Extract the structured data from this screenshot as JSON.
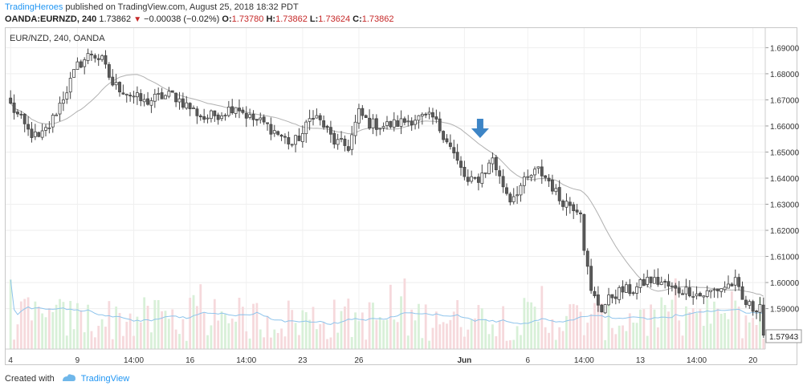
{
  "header": {
    "publisher": "TradingHeroes",
    "published_text": "published on TradingView.com, August 25, 2018 18:32 PDT"
  },
  "quote": {
    "symbol": "OANDA:EURNZD, 240",
    "last": "1.73862",
    "change": "−0.00038 (−0.02%)",
    "o_label": "O:",
    "o": "1.73780",
    "h_label": "H:",
    "h": "1.73862",
    "l_label": "L:",
    "l": "1.73624",
    "c_label": "C:",
    "c": "1.73862"
  },
  "legend": "EUR/NZD, 240, OANDA",
  "footer": {
    "created_with": "Created with",
    "brand": "TradingView"
  },
  "icons": {
    "down_arrow": "down-arrow-icon",
    "logo": "tradingview-logo-icon"
  },
  "colors": {
    "candle_up": "#ffffff",
    "candle_down": "#5b5b5b",
    "candle_border": "#444444",
    "ma": "#b0b0b0",
    "volume_ma": "#8ec4ec",
    "volume_up": "#d8f0d8",
    "volume_down": "#f6d9dc",
    "annotation": "#3d85c6",
    "price_label_bg": "#ffffff"
  },
  "chart_data": {
    "type": "candlestick",
    "ylim": [
      1.5745,
      1.6975
    ],
    "yticks": [
      "1.69000",
      "1.68000",
      "1.67000",
      "1.66000",
      "1.65000",
      "1.64000",
      "1.63000",
      "1.62000",
      "1.61000",
      "1.60000",
      "1.59000"
    ],
    "last_price_label": "1.57943",
    "last_price": 1.57943,
    "xticks": [
      {
        "label": "4",
        "i": 0
      },
      {
        "label": "9",
        "i": 19
      },
      {
        "label": "14:00",
        "i": 35
      },
      {
        "label": "16",
        "i": 51
      },
      {
        "label": "14:00",
        "i": 67
      },
      {
        "label": "23",
        "i": 83
      },
      {
        "label": "26",
        "i": 99
      },
      {
        "label": "Jun",
        "i": 129
      },
      {
        "label": "6",
        "i": 147
      },
      {
        "label": "14:00",
        "i": 163
      },
      {
        "label": "13",
        "i": 179
      },
      {
        "label": "14:00",
        "i": 195
      },
      {
        "label": "20",
        "i": 211
      }
    ],
    "anchors": [
      [
        0,
        1.668
      ],
      [
        5,
        1.658
      ],
      [
        8,
        1.655
      ],
      [
        11,
        1.66
      ],
      [
        16,
        1.674
      ],
      [
        19,
        1.683
      ],
      [
        23,
        1.688
      ],
      [
        26,
        1.685
      ],
      [
        29,
        1.676
      ],
      [
        33,
        1.673
      ],
      [
        38,
        1.669
      ],
      [
        42,
        1.671
      ],
      [
        46,
        1.672
      ],
      [
        50,
        1.668
      ],
      [
        55,
        1.663
      ],
      [
        60,
        1.665
      ],
      [
        64,
        1.668
      ],
      [
        68,
        1.663
      ],
      [
        72,
        1.661
      ],
      [
        76,
        1.657
      ],
      [
        80,
        1.653
      ],
      [
        83,
        1.657
      ],
      [
        86,
        1.665
      ],
      [
        89,
        1.66
      ],
      [
        92,
        1.654
      ],
      [
        96,
        1.652
      ],
      [
        99,
        1.665
      ],
      [
        102,
        1.661
      ],
      [
        106,
        1.66
      ],
      [
        110,
        1.661
      ],
      [
        115,
        1.663
      ],
      [
        120,
        1.663
      ],
      [
        124,
        1.655
      ],
      [
        127,
        1.646
      ],
      [
        130,
        1.638
      ],
      [
        133,
        1.64
      ],
      [
        136,
        1.645
      ],
      [
        137,
        1.648
      ],
      [
        139,
        1.64
      ],
      [
        142,
        1.632
      ],
      [
        145,
        1.637
      ],
      [
        148,
        1.641
      ],
      [
        150,
        1.643
      ],
      [
        153,
        1.639
      ],
      [
        156,
        1.632
      ],
      [
        159,
        1.63
      ],
      [
        162,
        1.628
      ],
      [
        163,
        1.614
      ],
      [
        165,
        1.596
      ],
      [
        168,
        1.59
      ],
      [
        171,
        1.595
      ],
      [
        174,
        1.597
      ],
      [
        177,
        1.597
      ],
      [
        181,
        1.601
      ],
      [
        185,
        1.6
      ],
      [
        189,
        1.597
      ],
      [
        193,
        1.597
      ],
      [
        196,
        1.595
      ],
      [
        200,
        1.597
      ],
      [
        204,
        1.599
      ],
      [
        206,
        1.6
      ],
      [
        208,
        1.593
      ],
      [
        211,
        1.59
      ],
      [
        213,
        1.592
      ],
      [
        214,
        1.58
      ]
    ],
    "annotation": {
      "type": "down-arrow",
      "i": 133
    }
  }
}
